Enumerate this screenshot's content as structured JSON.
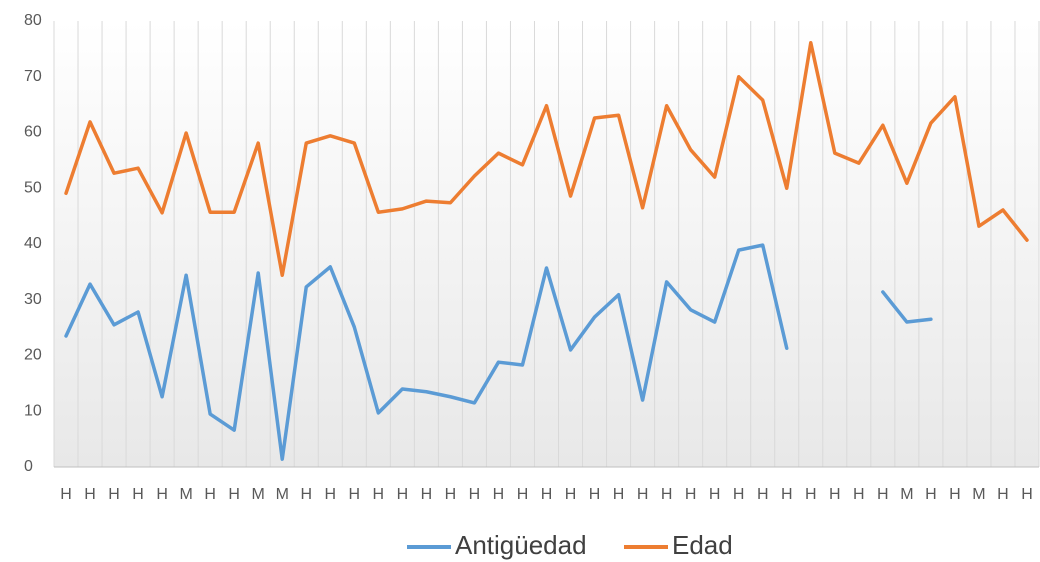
{
  "chart_data": {
    "type": "line",
    "categories": [
      "H",
      "H",
      "H",
      "H",
      "H",
      "M",
      "H",
      "H",
      "M",
      "M",
      "H",
      "H",
      "H",
      "H",
      "H",
      "H",
      "H",
      "H",
      "H",
      "H",
      "H",
      "H",
      "H",
      "H",
      "H",
      "H",
      "H",
      "H",
      "H",
      "H",
      "H",
      "H",
      "H",
      "H",
      "H",
      "M",
      "H",
      "H",
      "M",
      "H",
      "H"
    ],
    "series": [
      {
        "name": "Antigüedad",
        "color": "#5b9bd5",
        "values": [
          23.5,
          32.8,
          25.5,
          27.8,
          12.6,
          34.4,
          9.5,
          6.6,
          34.8,
          1.4,
          32.3,
          35.9,
          25.1,
          9.7,
          14.0,
          13.5,
          12.6,
          11.5,
          18.8,
          18.3,
          35.7,
          21.0,
          26.9,
          30.9,
          12.0,
          33.2,
          28.2,
          26.0,
          38.9,
          39.8,
          21.3,
          null,
          null,
          null,
          31.4,
          26.0,
          26.5,
          null,
          null,
          null,
          null
        ]
      },
      {
        "name": "Edad",
        "color": "#ed7d31",
        "values": [
          49.1,
          61.9,
          52.7,
          53.6,
          45.6,
          59.9,
          45.7,
          45.7,
          58.1,
          34.4,
          58.1,
          59.4,
          58.1,
          45.7,
          46.3,
          47.7,
          47.4,
          52.2,
          56.3,
          54.2,
          64.8,
          48.6,
          62.6,
          63.1,
          46.5,
          64.8,
          56.9,
          52.0,
          70.0,
          65.8,
          50.0,
          76.1,
          56.3,
          54.5,
          61.3,
          50.9,
          61.7,
          66.4,
          43.2,
          46.1,
          40.7
        ]
      }
    ],
    "ylim": [
      0,
      80
    ],
    "yticks": [
      0,
      10,
      20,
      30,
      40,
      50,
      60,
      70,
      80
    ],
    "legend": "bottom"
  }
}
